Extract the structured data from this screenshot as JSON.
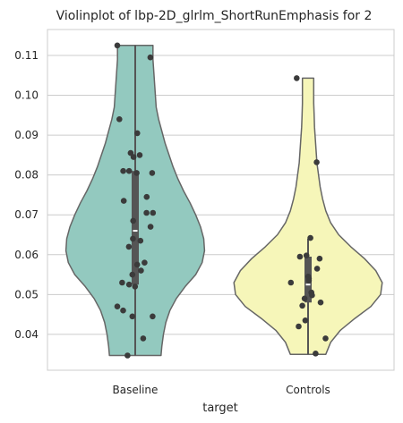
{
  "chart_data": {
    "type": "violin",
    "title": "Violinplot of lbp-2D_glrlm_ShortRunEmphasis for 2",
    "xlabel": "target",
    "ylabel": "",
    "categories": [
      "Baseline",
      "Controls"
    ],
    "ylim": [
      0.031,
      0.1165
    ],
    "yticks": [
      0.04,
      0.05,
      0.06,
      0.07,
      0.08,
      0.09,
      0.1,
      0.11
    ],
    "ytick_labels": [
      "0.04",
      "0.05",
      "0.06",
      "0.07",
      "0.08",
      "0.09",
      "0.10",
      "0.11"
    ],
    "grid": "horizontal",
    "series": [
      {
        "category": "Baseline",
        "color": "#93c9bf",
        "violin_range": [
          0.0347,
          0.1125
        ],
        "density_profile": [
          [
            0.0347,
            0.32
          ],
          [
            0.037,
            0.33
          ],
          [
            0.04,
            0.35
          ],
          [
            0.043,
            0.38
          ],
          [
            0.046,
            0.43
          ],
          [
            0.049,
            0.51
          ],
          [
            0.052,
            0.62
          ],
          [
            0.055,
            0.75
          ],
          [
            0.058,
            0.83
          ],
          [
            0.061,
            0.86
          ],
          [
            0.064,
            0.85
          ],
          [
            0.067,
            0.81
          ],
          [
            0.07,
            0.75
          ],
          [
            0.073,
            0.68
          ],
          [
            0.076,
            0.6
          ],
          [
            0.079,
            0.53
          ],
          [
            0.082,
            0.47
          ],
          [
            0.085,
            0.42
          ],
          [
            0.088,
            0.37
          ],
          [
            0.091,
            0.33
          ],
          [
            0.094,
            0.29
          ],
          [
            0.097,
            0.26
          ],
          [
            0.1,
            0.25
          ],
          [
            0.103,
            0.24
          ],
          [
            0.106,
            0.23
          ],
          [
            0.109,
            0.22
          ],
          [
            0.1125,
            0.22
          ]
        ],
        "box": {
          "q1": 0.0525,
          "median": 0.066,
          "q3": 0.081,
          "whisker_low": 0.0347,
          "whisker_high": 0.1125
        },
        "points": [
          0.1125,
          0.1095,
          0.094,
          0.0905,
          0.0855,
          0.0845,
          0.085,
          0.081,
          0.081,
          0.0805,
          0.0805,
          0.0745,
          0.0735,
          0.0705,
          0.0705,
          0.0685,
          0.067,
          0.064,
          0.0635,
          0.062,
          0.058,
          0.0575,
          0.056,
          0.055,
          0.053,
          0.0525,
          0.052,
          0.047,
          0.046,
          0.0445,
          0.0445,
          0.039,
          0.0347
        ]
      },
      {
        "category": "Controls",
        "color": "#f6f6b9",
        "violin_range": [
          0.035,
          0.1043
        ],
        "density_profile": [
          [
            0.035,
            0.22
          ],
          [
            0.038,
            0.28
          ],
          [
            0.041,
            0.4
          ],
          [
            0.044,
            0.58
          ],
          [
            0.047,
            0.78
          ],
          [
            0.05,
            0.9
          ],
          [
            0.053,
            0.92
          ],
          [
            0.056,
            0.84
          ],
          [
            0.059,
            0.7
          ],
          [
            0.062,
            0.53
          ],
          [
            0.065,
            0.38
          ],
          [
            0.068,
            0.28
          ],
          [
            0.071,
            0.22
          ],
          [
            0.074,
            0.18
          ],
          [
            0.077,
            0.15
          ],
          [
            0.08,
            0.13
          ],
          [
            0.083,
            0.11
          ],
          [
            0.086,
            0.1
          ],
          [
            0.089,
            0.09
          ],
          [
            0.092,
            0.08
          ],
          [
            0.095,
            0.075
          ],
          [
            0.098,
            0.07
          ],
          [
            0.101,
            0.07
          ],
          [
            0.1043,
            0.07
          ]
        ],
        "box": {
          "q1": 0.048,
          "median": 0.0525,
          "q3": 0.0595,
          "whisker_low": 0.035,
          "whisker_high": 0.064
        },
        "points": [
          0.1043,
          0.0832,
          0.0642,
          0.0598,
          0.0595,
          0.059,
          0.0565,
          0.0545,
          0.054,
          0.0535,
          0.053,
          0.0505,
          0.0498,
          0.049,
          0.048,
          0.0472,
          0.0435,
          0.042,
          0.039,
          0.0352
        ]
      }
    ]
  }
}
